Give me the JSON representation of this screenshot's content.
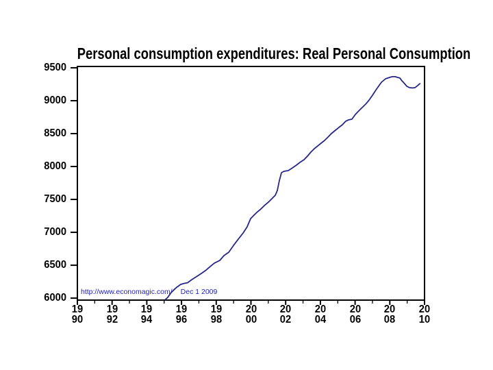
{
  "page": {
    "background_color": "#ffffff",
    "text_color": "#000000"
  },
  "chart_data": {
    "type": "line",
    "title": "Personal consumption expenditures: Real Personal Consumption",
    "xlabel": "",
    "ylabel": "",
    "grid": false,
    "legend_position": "none",
    "frame_color": "#000000",
    "x_axis": {
      "range": [
        1990,
        2010
      ],
      "major_tick_step_years": 2,
      "minor_tick_step_years": 1,
      "stacked_tick_labels": [
        [
          "19",
          "90"
        ],
        [
          "19",
          "92"
        ],
        [
          "19",
          "94"
        ],
        [
          "19",
          "96"
        ],
        [
          "19",
          "98"
        ],
        [
          "20",
          "00"
        ],
        [
          "20",
          "02"
        ],
        [
          "20",
          "04"
        ],
        [
          "20",
          "06"
        ],
        [
          "20",
          "08"
        ],
        [
          "20",
          "10"
        ]
      ]
    },
    "y_axis": {
      "range": [
        5970,
        9520
      ],
      "ticks": [
        6000,
        6500,
        7000,
        7500,
        8000,
        8500,
        9000,
        9500
      ]
    },
    "watermark": {
      "url": "http://www.economagic.com/",
      "date": "Dec 1 2009",
      "color": "#2222bb"
    },
    "series": [
      {
        "name": "Real Personal Consumption",
        "color": "#26268a",
        "points": [
          [
            1995.05,
            5969
          ],
          [
            1995.2,
            6010
          ],
          [
            1995.4,
            6083
          ],
          [
            1995.68,
            6156
          ],
          [
            1995.95,
            6208
          ],
          [
            1996.15,
            6224
          ],
          [
            1996.35,
            6234
          ],
          [
            1996.59,
            6281
          ],
          [
            1996.9,
            6333
          ],
          [
            1997.14,
            6375
          ],
          [
            1997.42,
            6427
          ],
          [
            1997.65,
            6479
          ],
          [
            1997.89,
            6531
          ],
          [
            1998.2,
            6573
          ],
          [
            1998.44,
            6646
          ],
          [
            1998.72,
            6698
          ],
          [
            1999.0,
            6802
          ],
          [
            1999.27,
            6896
          ],
          [
            1999.55,
            6990
          ],
          [
            1999.78,
            7083
          ],
          [
            1999.98,
            7208
          ],
          [
            2000.14,
            7250
          ],
          [
            2000.33,
            7302
          ],
          [
            2000.53,
            7344
          ],
          [
            2000.77,
            7406
          ],
          [
            2001.0,
            7458
          ],
          [
            2001.2,
            7510
          ],
          [
            2001.4,
            7563
          ],
          [
            2001.52,
            7635
          ],
          [
            2001.64,
            7792
          ],
          [
            2001.76,
            7906
          ],
          [
            2001.9,
            7927
          ],
          [
            2002.15,
            7938
          ],
          [
            2002.39,
            7979
          ],
          [
            2002.62,
            8021
          ],
          [
            2002.82,
            8063
          ],
          [
            2003.06,
            8104
          ],
          [
            2003.25,
            8156
          ],
          [
            2003.45,
            8219
          ],
          [
            2003.65,
            8271
          ],
          [
            2003.85,
            8313
          ],
          [
            2004.04,
            8354
          ],
          [
            2004.24,
            8396
          ],
          [
            2004.44,
            8448
          ],
          [
            2004.63,
            8500
          ],
          [
            2004.87,
            8552
          ],
          [
            2005.07,
            8594
          ],
          [
            2005.27,
            8635
          ],
          [
            2005.46,
            8688
          ],
          [
            2005.62,
            8708
          ],
          [
            2005.82,
            8719
          ],
          [
            2006.02,
            8792
          ],
          [
            2006.21,
            8844
          ],
          [
            2006.41,
            8896
          ],
          [
            2006.61,
            8948
          ],
          [
            2006.81,
            9010
          ],
          [
            2007.0,
            9083
          ],
          [
            2007.24,
            9177
          ],
          [
            2007.52,
            9281
          ],
          [
            2007.75,
            9333
          ],
          [
            2008.0,
            9354
          ],
          [
            2008.15,
            9365
          ],
          [
            2008.31,
            9365
          ],
          [
            2008.43,
            9354
          ],
          [
            2008.58,
            9344
          ],
          [
            2008.7,
            9302
          ],
          [
            2008.85,
            9260
          ],
          [
            2008.98,
            9219
          ],
          [
            2009.14,
            9198
          ],
          [
            2009.3,
            9193
          ],
          [
            2009.45,
            9198
          ],
          [
            2009.55,
            9219
          ],
          [
            2009.65,
            9240
          ],
          [
            2009.73,
            9260
          ]
        ]
      }
    ]
  }
}
